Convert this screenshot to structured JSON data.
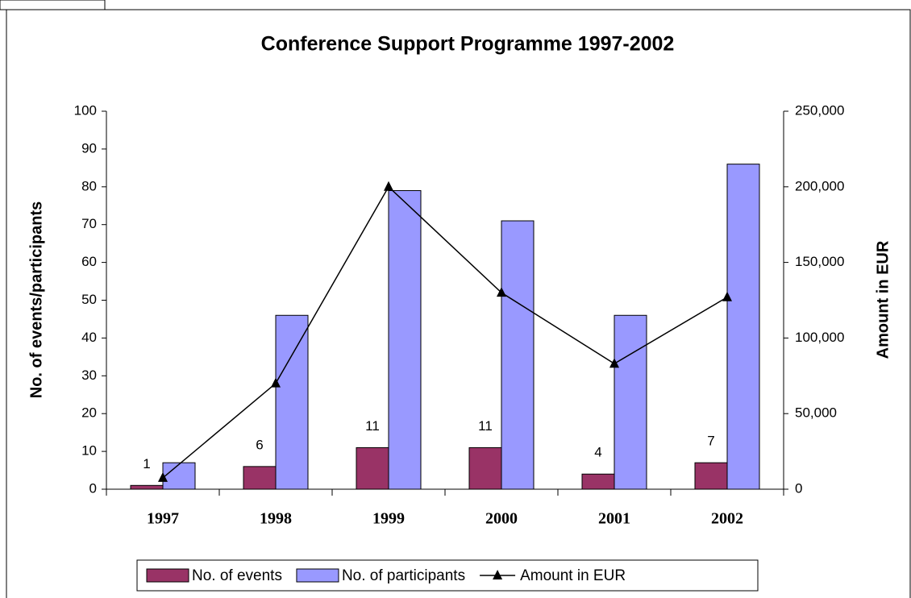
{
  "chart_data": {
    "type": "bar",
    "title": "Conference Support Programme 1997-2002",
    "y_label": "No. of events/participants",
    "y2_label": "Amount in EUR",
    "categories": [
      "1997",
      "1998",
      "1999",
      "2000",
      "2001",
      "2002"
    ],
    "series": [
      {
        "name": "No. of events",
        "color": "#993366",
        "values": [
          1,
          6,
          11,
          11,
          4,
          7
        ],
        "data_labels": true
      },
      {
        "name": "No. of participants",
        "color": "#9999ff",
        "values": [
          7,
          46,
          79,
          71,
          46,
          86
        ]
      },
      {
        "name": "Amount in EUR",
        "color": "#000000",
        "type": "line",
        "axis": "y2",
        "values": [
          7500,
          70000,
          200000,
          130000,
          83000,
          127000
        ]
      }
    ],
    "ylim": [
      0,
      100
    ],
    "yticks": [
      0,
      10,
      20,
      30,
      40,
      50,
      60,
      70,
      80,
      90,
      100
    ],
    "y2lim": [
      0,
      250000
    ],
    "y2ticks": [
      0,
      {
        "value": 50000,
        "label": "50,000"
      },
      {
        "value": 100000,
        "label": "100,000"
      },
      {
        "value": 150000,
        "label": "150,000"
      },
      {
        "value": 200000,
        "label": "200,000"
      },
      {
        "value": 250000,
        "label": "250,000"
      }
    ],
    "grid": false,
    "legend": "bottom"
  }
}
